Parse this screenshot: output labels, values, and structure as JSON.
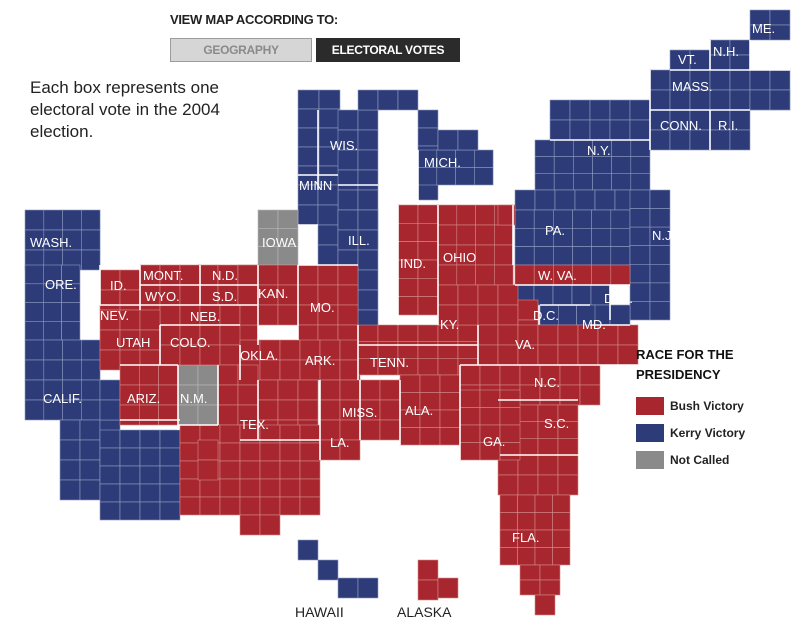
{
  "header": {
    "title": "VIEW MAP ACCORDING TO:",
    "buttons": {
      "geography": "GEOGRAPHY",
      "electoral_votes": "ELECTORAL VOTES"
    }
  },
  "note": "Each box represents one electoral vote in the 2004 election.",
  "legend": {
    "title": "RACE FOR THE PRESIDENCY",
    "items": [
      {
        "key": "bush",
        "label": "Bush Victory",
        "color": "#a8262e"
      },
      {
        "key": "kerry",
        "label": "Kerry Victory",
        "color": "#2d3b78"
      },
      {
        "key": "none",
        "label": "Not Called",
        "color": "#8a8a8a"
      }
    ]
  },
  "colors": {
    "bush": "#a8262e",
    "kerry": "#2d3b78",
    "none": "#8a8a8a"
  },
  "states": [
    {
      "label": "ME.",
      "result": "kerry"
    },
    {
      "label": "VT.",
      "result": "kerry"
    },
    {
      "label": "N.H.",
      "result": "kerry"
    },
    {
      "label": "MASS.",
      "result": "kerry"
    },
    {
      "label": "CONN.",
      "result": "kerry"
    },
    {
      "label": "R.I.",
      "result": "kerry"
    },
    {
      "label": "N.Y.",
      "result": "kerry"
    },
    {
      "label": "WIS.",
      "result": "kerry"
    },
    {
      "label": "MICH.",
      "result": "kerry"
    },
    {
      "label": "MINN",
      "result": "kerry"
    },
    {
      "label": "WASH.",
      "result": "kerry"
    },
    {
      "label": "IOWA",
      "result": "none"
    },
    {
      "label": "ILL.",
      "result": "kerry"
    },
    {
      "label": "IND.",
      "result": "bush"
    },
    {
      "label": "OHIO",
      "result": "bush"
    },
    {
      "label": "PA.",
      "result": "kerry"
    },
    {
      "label": "N.J.",
      "result": "kerry"
    },
    {
      "label": "ORE.",
      "result": "kerry"
    },
    {
      "label": "ID.",
      "result": "bush"
    },
    {
      "label": "MONT.",
      "result": "bush"
    },
    {
      "label": "N.D.",
      "result": "bush"
    },
    {
      "label": "WYO.",
      "result": "bush"
    },
    {
      "label": "S.D.",
      "result": "bush"
    },
    {
      "label": "KAN.",
      "result": "bush"
    },
    {
      "label": "W. VA.",
      "result": "bush"
    },
    {
      "label": "DEL.",
      "result": "kerry"
    },
    {
      "label": "NEV.",
      "result": "bush"
    },
    {
      "label": "NEB.",
      "result": "bush"
    },
    {
      "label": "MO.",
      "result": "bush"
    },
    {
      "label": "KY.",
      "result": "bush"
    },
    {
      "label": "D.C.",
      "result": "kerry"
    },
    {
      "label": "MD.",
      "result": "kerry"
    },
    {
      "label": "UTAH",
      "result": "bush"
    },
    {
      "label": "COLO.",
      "result": "bush"
    },
    {
      "label": "OKLA.",
      "result": "bush"
    },
    {
      "label": "ARK.",
      "result": "bush"
    },
    {
      "label": "TENN.",
      "result": "bush"
    },
    {
      "label": "VA.",
      "result": "bush"
    },
    {
      "label": "N.C.",
      "result": "bush"
    },
    {
      "label": "CALIF.",
      "result": "kerry"
    },
    {
      "label": "ARIZ.",
      "result": "bush"
    },
    {
      "label": "N.M.",
      "result": "none"
    },
    {
      "label": "TEX.",
      "result": "bush"
    },
    {
      "label": "MISS.",
      "result": "bush"
    },
    {
      "label": "ALA.",
      "result": "bush"
    },
    {
      "label": "S.C.",
      "result": "bush"
    },
    {
      "label": "LA.",
      "result": "bush"
    },
    {
      "label": "GA.",
      "result": "bush"
    },
    {
      "label": "FLA.",
      "result": "bush"
    }
  ],
  "outside": {
    "hawaii": "HAWAII",
    "alaska": "ALASKA"
  }
}
